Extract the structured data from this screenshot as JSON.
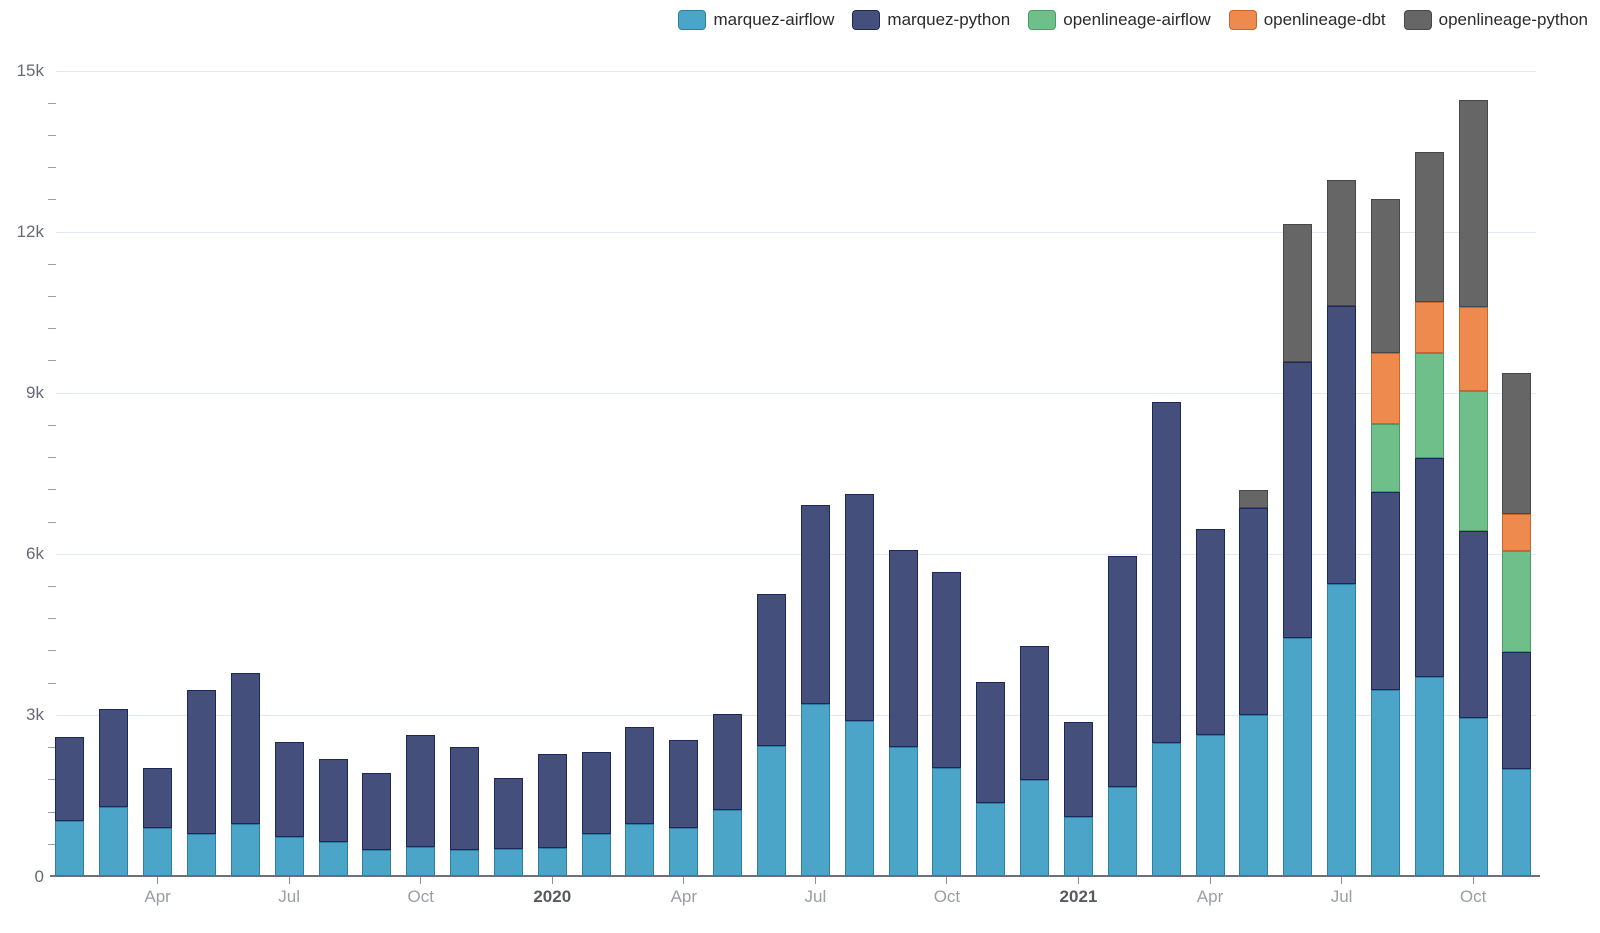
{
  "chart_data": {
    "type": "bar",
    "stacked": true,
    "title": "",
    "legend_position": "top-right",
    "grid": true,
    "y_axis": {
      "min": 0,
      "max": 15000,
      "minor_step": 600,
      "major_step": 3000,
      "ticks": [
        {
          "value": 0,
          "label": "0"
        },
        {
          "value": 3000,
          "label": "3k"
        },
        {
          "value": 6000,
          "label": "6k"
        },
        {
          "value": 9000,
          "label": "9k"
        },
        {
          "value": 12000,
          "label": "12k"
        },
        {
          "value": 15000,
          "label": "15k"
        }
      ]
    },
    "categories": [
      "Feb 2019",
      "Mar 2019",
      "Apr 2019",
      "May 2019",
      "Jun 2019",
      "Jul 2019",
      "Aug 2019",
      "Sep 2019",
      "Oct 2019",
      "Nov 2019",
      "Dec 2019",
      "Jan 2020",
      "Feb 2020",
      "Mar 2020",
      "Apr 2020",
      "May 2020",
      "Jun 2020",
      "Jul 2020",
      "Aug 2020",
      "Sep 2020",
      "Oct 2020",
      "Nov 2020",
      "Dec 2020",
      "Jan 2021",
      "Feb 2021",
      "Mar 2021",
      "Apr 2021",
      "May 2021",
      "Jun 2021",
      "Jul 2021",
      "Aug 2021",
      "Sep 2021",
      "Oct 2021",
      "Nov 2021"
    ],
    "x_ticks": [
      {
        "index": 2,
        "label": "Apr",
        "bold": false
      },
      {
        "index": 5,
        "label": "Jul",
        "bold": false
      },
      {
        "index": 8,
        "label": "Oct",
        "bold": false
      },
      {
        "index": 11,
        "label": "2020",
        "bold": true
      },
      {
        "index": 14,
        "label": "Apr",
        "bold": false
      },
      {
        "index": 17,
        "label": "Jul",
        "bold": false
      },
      {
        "index": 20,
        "label": "Oct",
        "bold": false
      },
      {
        "index": 23,
        "label": "2021",
        "bold": true
      },
      {
        "index": 26,
        "label": "Apr",
        "bold": false
      },
      {
        "index": 29,
        "label": "Jul",
        "bold": false
      },
      {
        "index": 32,
        "label": "Oct",
        "bold": false
      }
    ],
    "series": [
      {
        "name": "marquez-airflow",
        "color": "#4aa5c8",
        "border_color": "#2e7fa3",
        "values": [
          1020,
          1280,
          900,
          790,
          960,
          730,
          630,
          490,
          540,
          480,
          510,
          520,
          790,
          970,
          900,
          1220,
          2420,
          3210,
          2890,
          2400,
          2015,
          1360,
          1780,
          1090,
          1660,
          2470,
          2630,
          3000,
          4430,
          5430,
          3470,
          3710,
          2940,
          2000
        ]
      },
      {
        "name": "marquez-python",
        "color": "#454f7c",
        "border_color": "#1c2858",
        "values": [
          1570,
          1830,
          1110,
          2680,
          2820,
          1760,
          1550,
          1430,
          2080,
          1920,
          1310,
          1760,
          1510,
          1810,
          1630,
          1800,
          2830,
          3700,
          4220,
          3680,
          3650,
          2250,
          2510,
          1770,
          4290,
          6360,
          3840,
          3845,
          5150,
          5190,
          3680,
          4080,
          3480,
          2180
        ]
      },
      {
        "name": "openlineage-airflow",
        "color": "#6fbf8a",
        "border_color": "#4c9a68",
        "values": [
          0,
          0,
          0,
          0,
          0,
          0,
          0,
          0,
          0,
          0,
          0,
          0,
          0,
          0,
          0,
          0,
          0,
          0,
          0,
          0,
          0,
          0,
          0,
          0,
          0,
          0,
          0,
          0,
          0,
          0,
          1260,
          1950,
          2620,
          1870
        ]
      },
      {
        "name": "openlineage-dbt",
        "color": "#ef8a4f",
        "border_color": "#c6662b",
        "values": [
          0,
          0,
          0,
          0,
          0,
          0,
          0,
          0,
          0,
          0,
          0,
          0,
          0,
          0,
          0,
          0,
          0,
          0,
          0,
          0,
          0,
          0,
          0,
          0,
          0,
          0,
          0,
          0,
          0,
          0,
          1330,
          950,
          1560,
          690
        ]
      },
      {
        "name": "openlineage-python",
        "color": "#666666",
        "border_color": "#474747",
        "values": [
          0,
          0,
          0,
          0,
          0,
          0,
          0,
          0,
          0,
          0,
          0,
          0,
          0,
          0,
          0,
          0,
          0,
          0,
          0,
          0,
          0,
          0,
          0,
          0,
          0,
          0,
          0,
          345,
          2570,
          2350,
          2860,
          2790,
          3850,
          2620
        ]
      }
    ]
  },
  "colors": {
    "background": "#ffffff",
    "gridline": "#e3e9f3",
    "axis_line": "#6e7079",
    "tick": "#8d929b",
    "y_label": "#666a73",
    "x_label": "#999da5",
    "x_label_year": "#565a62",
    "legend_text": "#2b2b2b"
  }
}
